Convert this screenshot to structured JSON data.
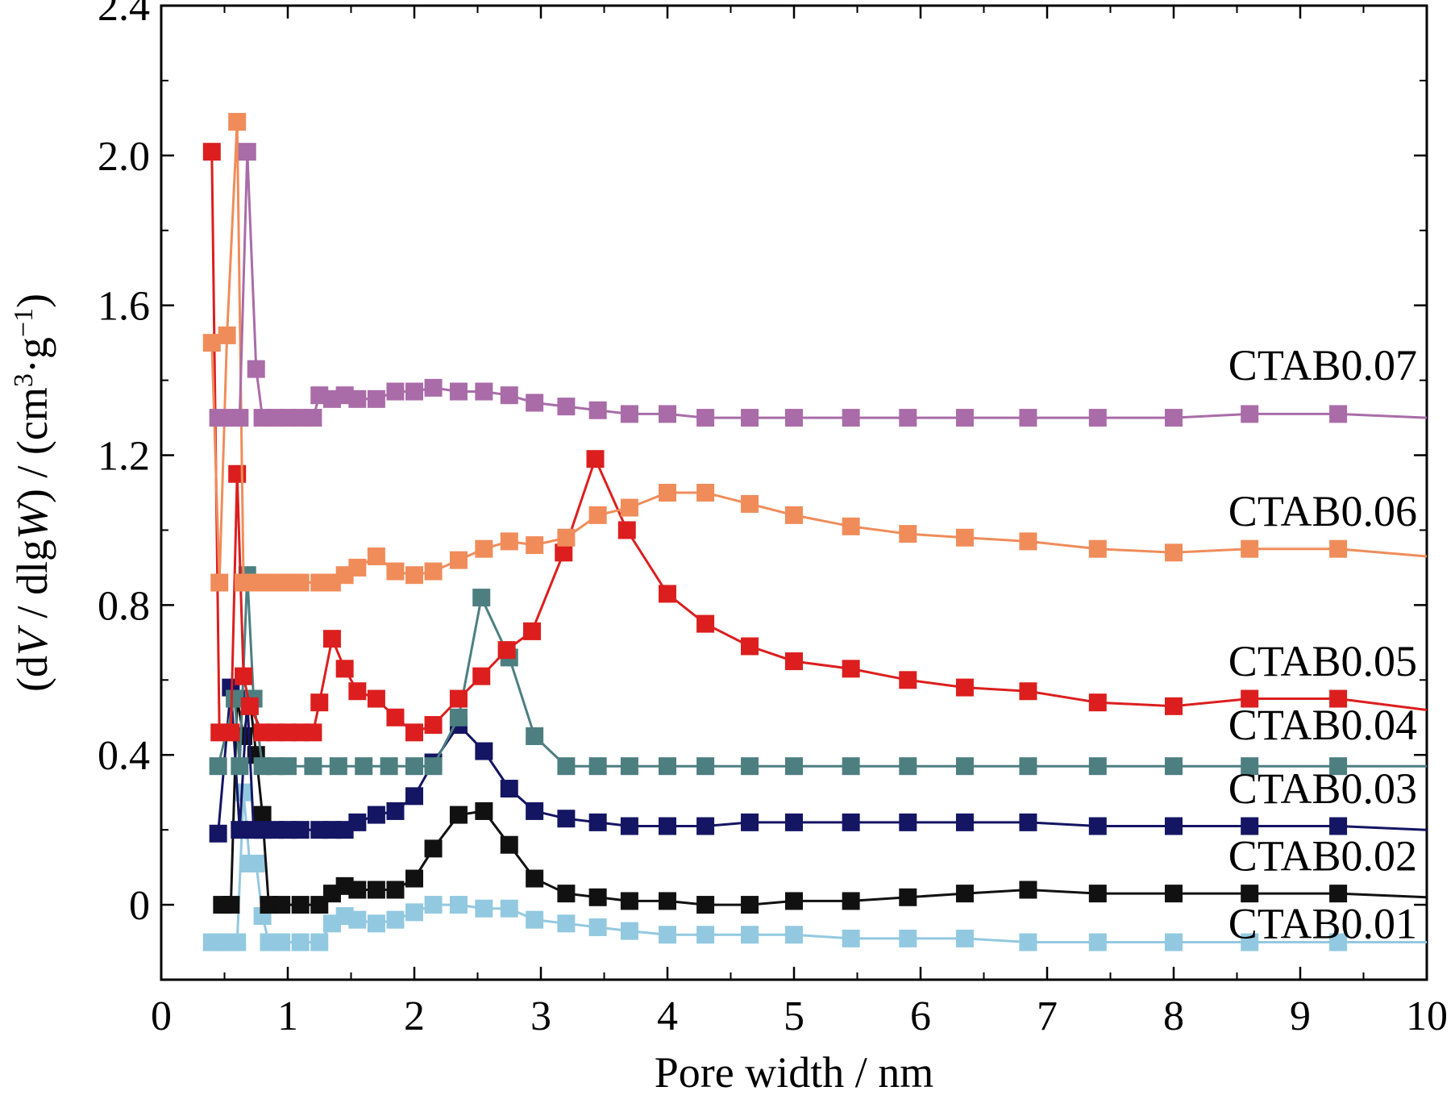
{
  "chart_data": {
    "type": "line",
    "title": "",
    "xlabel": "Pore width / nm",
    "ylabel_parts": [
      "(d",
      "V",
      " / dlg",
      "W",
      ") / (cm",
      "3",
      "·g",
      "−1",
      ")"
    ],
    "xlim": [
      0,
      10
    ],
    "ylim": [
      -0.2,
      2.4
    ],
    "xticks": [
      0,
      1,
      2,
      3,
      4,
      5,
      6,
      7,
      8,
      9,
      10
    ],
    "yticks": [
      0,
      0.4,
      0.8,
      1.2,
      1.6,
      2.0,
      2.4
    ],
    "ytick_labels": [
      "0",
      "0.4",
      "0.8",
      "1.2",
      "1.6",
      "2.0",
      "2.4"
    ],
    "grid": false,
    "legend": "inline labels at right end of each curve",
    "series": [
      {
        "name": "CTAB0.01",
        "color": "#92c9e0",
        "label_y": -0.05,
        "points": [
          [
            0.4,
            -0.1
          ],
          [
            0.46,
            -0.1
          ],
          [
            0.52,
            -0.1
          ],
          [
            0.6,
            -0.1
          ],
          [
            0.65,
            0.3
          ],
          [
            0.7,
            0.11
          ],
          [
            0.75,
            0.11
          ],
          [
            0.8,
            -0.03
          ],
          [
            0.85,
            -0.1
          ],
          [
            0.95,
            -0.1
          ],
          [
            1.1,
            -0.1
          ],
          [
            1.25,
            -0.1
          ],
          [
            1.35,
            -0.05
          ],
          [
            1.45,
            -0.03
          ],
          [
            1.55,
            -0.04
          ],
          [
            1.7,
            -0.05
          ],
          [
            1.85,
            -0.04
          ],
          [
            2.0,
            -0.02
          ],
          [
            2.15,
            0.0
          ],
          [
            2.35,
            0.0
          ],
          [
            2.55,
            -0.01
          ],
          [
            2.75,
            -0.01
          ],
          [
            2.95,
            -0.04
          ],
          [
            3.2,
            -0.05
          ],
          [
            3.45,
            -0.06
          ],
          [
            3.7,
            -0.07
          ],
          [
            4.0,
            -0.08
          ],
          [
            4.3,
            -0.08
          ],
          [
            4.65,
            -0.08
          ],
          [
            5.0,
            -0.08
          ],
          [
            5.45,
            -0.09
          ],
          [
            5.9,
            -0.09
          ],
          [
            6.35,
            -0.09
          ],
          [
            6.85,
            -0.1
          ],
          [
            7.4,
            -0.1
          ],
          [
            8.0,
            -0.1
          ],
          [
            8.6,
            -0.1
          ],
          [
            9.3,
            -0.1
          ],
          [
            10.0,
            -0.1
          ]
        ]
      },
      {
        "name": "CTAB0.02",
        "color": "#111111",
        "label_y": 0.13,
        "points": [
          [
            0.48,
            0.0
          ],
          [
            0.55,
            0.0
          ],
          [
            0.6,
            0.55
          ],
          [
            0.65,
            0.45
          ],
          [
            0.7,
            0.55
          ],
          [
            0.75,
            0.4
          ],
          [
            0.8,
            0.24
          ],
          [
            0.85,
            0.0
          ],
          [
            0.95,
            0.0
          ],
          [
            1.1,
            0.0
          ],
          [
            1.25,
            0.0
          ],
          [
            1.35,
            0.03
          ],
          [
            1.45,
            0.05
          ],
          [
            1.55,
            0.04
          ],
          [
            1.7,
            0.04
          ],
          [
            1.85,
            0.04
          ],
          [
            2.0,
            0.07
          ],
          [
            2.15,
            0.15
          ],
          [
            2.35,
            0.24
          ],
          [
            2.55,
            0.25
          ],
          [
            2.75,
            0.16
          ],
          [
            2.95,
            0.07
          ],
          [
            3.2,
            0.03
          ],
          [
            3.45,
            0.02
          ],
          [
            3.7,
            0.01
          ],
          [
            4.0,
            0.01
          ],
          [
            4.3,
            0.0
          ],
          [
            4.65,
            0.0
          ],
          [
            5.0,
            0.01
          ],
          [
            5.45,
            0.01
          ],
          [
            5.9,
            0.02
          ],
          [
            6.35,
            0.03
          ],
          [
            6.85,
            0.04
          ],
          [
            7.4,
            0.03
          ],
          [
            8.0,
            0.03
          ],
          [
            8.6,
            0.03
          ],
          [
            9.3,
            0.03
          ],
          [
            10.0,
            0.02
          ]
        ]
      },
      {
        "name": "CTAB0.03",
        "color": "#141563",
        "label_y": 0.31,
        "points": [
          [
            0.45,
            0.19
          ],
          [
            0.55,
            0.58
          ],
          [
            0.62,
            0.2
          ],
          [
            0.68,
            0.55
          ],
          [
            0.73,
            0.2
          ],
          [
            0.8,
            0.2
          ],
          [
            0.9,
            0.2
          ],
          [
            1.0,
            0.2
          ],
          [
            1.1,
            0.2
          ],
          [
            1.25,
            0.2
          ],
          [
            1.35,
            0.2
          ],
          [
            1.45,
            0.2
          ],
          [
            1.55,
            0.22
          ],
          [
            1.7,
            0.24
          ],
          [
            1.85,
            0.25
          ],
          [
            2.0,
            0.29
          ],
          [
            2.15,
            0.38
          ],
          [
            2.35,
            0.48
          ],
          [
            2.55,
            0.41
          ],
          [
            2.75,
            0.31
          ],
          [
            2.95,
            0.25
          ],
          [
            3.2,
            0.23
          ],
          [
            3.45,
            0.22
          ],
          [
            3.7,
            0.21
          ],
          [
            4.0,
            0.21
          ],
          [
            4.3,
            0.21
          ],
          [
            4.65,
            0.22
          ],
          [
            5.0,
            0.22
          ],
          [
            5.45,
            0.22
          ],
          [
            5.9,
            0.22
          ],
          [
            6.35,
            0.22
          ],
          [
            6.85,
            0.22
          ],
          [
            7.4,
            0.21
          ],
          [
            8.0,
            0.21
          ],
          [
            8.6,
            0.21
          ],
          [
            9.3,
            0.21
          ],
          [
            10.0,
            0.2
          ]
        ]
      },
      {
        "name": "CTAB0.04",
        "color": "#4d7f80",
        "label_y": 0.48,
        "points": [
          [
            0.45,
            0.37
          ],
          [
            0.58,
            0.55
          ],
          [
            0.62,
            0.37
          ],
          [
            0.68,
            0.88
          ],
          [
            0.73,
            0.55
          ],
          [
            0.8,
            0.37
          ],
          [
            0.9,
            0.37
          ],
          [
            1.0,
            0.37
          ],
          [
            1.2,
            0.37
          ],
          [
            1.4,
            0.37
          ],
          [
            1.6,
            0.37
          ],
          [
            1.8,
            0.37
          ],
          [
            2.0,
            0.37
          ],
          [
            2.15,
            0.37
          ],
          [
            2.35,
            0.5
          ],
          [
            2.53,
            0.82
          ],
          [
            2.75,
            0.66
          ],
          [
            2.95,
            0.45
          ],
          [
            3.2,
            0.37
          ],
          [
            3.45,
            0.37
          ],
          [
            3.7,
            0.37
          ],
          [
            4.0,
            0.37
          ],
          [
            4.3,
            0.37
          ],
          [
            4.65,
            0.37
          ],
          [
            5.0,
            0.37
          ],
          [
            5.45,
            0.37
          ],
          [
            5.9,
            0.37
          ],
          [
            6.35,
            0.37
          ],
          [
            6.85,
            0.37
          ],
          [
            7.4,
            0.37
          ],
          [
            8.0,
            0.37
          ],
          [
            8.6,
            0.37
          ],
          [
            9.3,
            0.37
          ],
          [
            10.0,
            0.37
          ]
        ]
      },
      {
        "name": "CTAB0.05",
        "color": "#dc1e1e",
        "label_y": 0.65,
        "points": [
          [
            0.4,
            2.01
          ],
          [
            0.46,
            0.46
          ],
          [
            0.55,
            0.46
          ],
          [
            0.6,
            1.15
          ],
          [
            0.65,
            0.61
          ],
          [
            0.7,
            0.53
          ],
          [
            0.8,
            0.46
          ],
          [
            0.9,
            0.46
          ],
          [
            1.0,
            0.46
          ],
          [
            1.1,
            0.46
          ],
          [
            1.2,
            0.46
          ],
          [
            1.25,
            0.54
          ],
          [
            1.35,
            0.71
          ],
          [
            1.45,
            0.63
          ],
          [
            1.55,
            0.57
          ],
          [
            1.7,
            0.55
          ],
          [
            1.85,
            0.5
          ],
          [
            2.0,
            0.46
          ],
          [
            2.15,
            0.48
          ],
          [
            2.35,
            0.55
          ],
          [
            2.53,
            0.61
          ],
          [
            2.73,
            0.68
          ],
          [
            2.93,
            0.73
          ],
          [
            3.18,
            0.94
          ],
          [
            3.43,
            1.19
          ],
          [
            3.68,
            1.0
          ],
          [
            4.0,
            0.83
          ],
          [
            4.3,
            0.75
          ],
          [
            4.65,
            0.69
          ],
          [
            5.0,
            0.65
          ],
          [
            5.45,
            0.63
          ],
          [
            5.9,
            0.6
          ],
          [
            6.35,
            0.58
          ],
          [
            6.85,
            0.57
          ],
          [
            7.4,
            0.54
          ],
          [
            8.0,
            0.53
          ],
          [
            8.6,
            0.55
          ],
          [
            9.3,
            0.55
          ],
          [
            10.0,
            0.52
          ]
        ]
      },
      {
        "name": "CTAB0.06",
        "color": "#f08c5a",
        "label_y": 1.05,
        "points": [
          [
            0.4,
            1.5
          ],
          [
            0.46,
            0.86
          ],
          [
            0.52,
            1.52
          ],
          [
            0.6,
            2.09
          ],
          [
            0.65,
            0.86
          ],
          [
            0.7,
            0.86
          ],
          [
            0.8,
            0.86
          ],
          [
            0.9,
            0.86
          ],
          [
            1.0,
            0.86
          ],
          [
            1.1,
            0.86
          ],
          [
            1.25,
            0.86
          ],
          [
            1.35,
            0.86
          ],
          [
            1.45,
            0.88
          ],
          [
            1.55,
            0.9
          ],
          [
            1.7,
            0.93
          ],
          [
            1.85,
            0.89
          ],
          [
            2.0,
            0.88
          ],
          [
            2.15,
            0.89
          ],
          [
            2.35,
            0.92
          ],
          [
            2.55,
            0.95
          ],
          [
            2.75,
            0.97
          ],
          [
            2.95,
            0.96
          ],
          [
            3.2,
            0.98
          ],
          [
            3.45,
            1.04
          ],
          [
            3.7,
            1.06
          ],
          [
            4.0,
            1.1
          ],
          [
            4.3,
            1.1
          ],
          [
            4.65,
            1.07
          ],
          [
            5.0,
            1.04
          ],
          [
            5.45,
            1.01
          ],
          [
            5.9,
            0.99
          ],
          [
            6.35,
            0.98
          ],
          [
            6.85,
            0.97
          ],
          [
            7.4,
            0.95
          ],
          [
            8.0,
            0.94
          ],
          [
            8.6,
            0.95
          ],
          [
            9.3,
            0.95
          ],
          [
            10.0,
            0.93
          ]
        ]
      },
      {
        "name": "CTAB0.07",
        "color": "#a96ca8",
        "label_y": 1.44,
        "points": [
          [
            0.45,
            1.3
          ],
          [
            0.55,
            1.3
          ],
          [
            0.62,
            1.3
          ],
          [
            0.68,
            2.01
          ],
          [
            0.75,
            1.43
          ],
          [
            0.8,
            1.3
          ],
          [
            0.9,
            1.3
          ],
          [
            1.0,
            1.3
          ],
          [
            1.1,
            1.3
          ],
          [
            1.2,
            1.3
          ],
          [
            1.25,
            1.36
          ],
          [
            1.35,
            1.35
          ],
          [
            1.45,
            1.36
          ],
          [
            1.55,
            1.35
          ],
          [
            1.7,
            1.35
          ],
          [
            1.85,
            1.37
          ],
          [
            2.0,
            1.37
          ],
          [
            2.15,
            1.38
          ],
          [
            2.35,
            1.37
          ],
          [
            2.55,
            1.37
          ],
          [
            2.75,
            1.36
          ],
          [
            2.95,
            1.34
          ],
          [
            3.2,
            1.33
          ],
          [
            3.45,
            1.32
          ],
          [
            3.7,
            1.31
          ],
          [
            4.0,
            1.31
          ],
          [
            4.3,
            1.3
          ],
          [
            4.65,
            1.3
          ],
          [
            5.0,
            1.3
          ],
          [
            5.45,
            1.3
          ],
          [
            5.9,
            1.3
          ],
          [
            6.35,
            1.3
          ],
          [
            6.85,
            1.3
          ],
          [
            7.4,
            1.3
          ],
          [
            8.0,
            1.3
          ],
          [
            8.6,
            1.31
          ],
          [
            9.3,
            1.31
          ],
          [
            10.0,
            1.3
          ]
        ]
      }
    ]
  }
}
